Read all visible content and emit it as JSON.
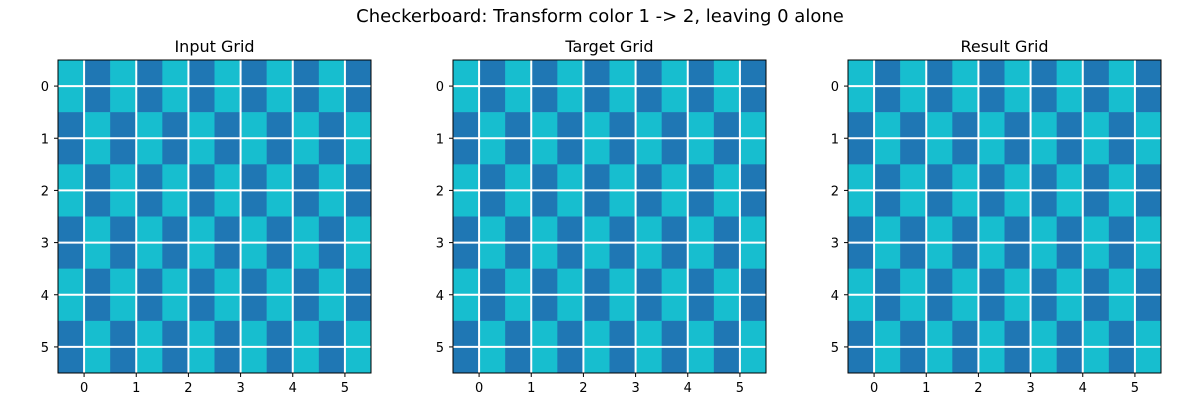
{
  "figure": {
    "suptitle": "Checkerboard: Transform color 1 -> 2, leaving 0 alone"
  },
  "colors": {
    "light": "#17becf",
    "dark": "#1f77b4",
    "grid": "#ffffff",
    "axis": "#000000"
  },
  "chart_data": [
    {
      "type": "heatmap",
      "title": "Input Grid",
      "x_ticks": [
        0,
        1,
        2,
        3,
        4,
        5
      ],
      "y_ticks": [
        0,
        1,
        2,
        3,
        4,
        5
      ],
      "grid": true,
      "values": [
        [
          0,
          1,
          0,
          1,
          0,
          1,
          0,
          1,
          0,
          1,
          0,
          1
        ],
        [
          0,
          1,
          0,
          1,
          0,
          1,
          0,
          1,
          0,
          1,
          0,
          1
        ],
        [
          1,
          0,
          1,
          0,
          1,
          0,
          1,
          0,
          1,
          0,
          1,
          0
        ],
        [
          1,
          0,
          1,
          0,
          1,
          0,
          1,
          0,
          1,
          0,
          1,
          0
        ],
        [
          0,
          1,
          0,
          1,
          0,
          1,
          0,
          1,
          0,
          1,
          0,
          1
        ],
        [
          0,
          1,
          0,
          1,
          0,
          1,
          0,
          1,
          0,
          1,
          0,
          1
        ],
        [
          1,
          0,
          1,
          0,
          1,
          0,
          1,
          0,
          1,
          0,
          1,
          0
        ],
        [
          1,
          0,
          1,
          0,
          1,
          0,
          1,
          0,
          1,
          0,
          1,
          0
        ],
        [
          0,
          1,
          0,
          1,
          0,
          1,
          0,
          1,
          0,
          1,
          0,
          1
        ],
        [
          0,
          1,
          0,
          1,
          0,
          1,
          0,
          1,
          0,
          1,
          0,
          1
        ],
        [
          1,
          0,
          1,
          0,
          1,
          0,
          1,
          0,
          1,
          0,
          1,
          0
        ],
        [
          1,
          0,
          1,
          0,
          1,
          0,
          1,
          0,
          1,
          0,
          1,
          0
        ]
      ]
    },
    {
      "type": "heatmap",
      "title": "Target Grid",
      "x_ticks": [
        0,
        1,
        2,
        3,
        4,
        5
      ],
      "y_ticks": [
        0,
        1,
        2,
        3,
        4,
        5
      ],
      "grid": true,
      "values": [
        [
          0,
          1,
          0,
          1,
          0,
          1,
          0,
          1,
          0,
          1,
          0,
          1
        ],
        [
          0,
          1,
          0,
          1,
          0,
          1,
          0,
          1,
          0,
          1,
          0,
          1
        ],
        [
          1,
          0,
          1,
          0,
          1,
          0,
          1,
          0,
          1,
          0,
          1,
          0
        ],
        [
          1,
          0,
          1,
          0,
          1,
          0,
          1,
          0,
          1,
          0,
          1,
          0
        ],
        [
          0,
          1,
          0,
          1,
          0,
          1,
          0,
          1,
          0,
          1,
          0,
          1
        ],
        [
          0,
          1,
          0,
          1,
          0,
          1,
          0,
          1,
          0,
          1,
          0,
          1
        ],
        [
          1,
          0,
          1,
          0,
          1,
          0,
          1,
          0,
          1,
          0,
          1,
          0
        ],
        [
          1,
          0,
          1,
          0,
          1,
          0,
          1,
          0,
          1,
          0,
          1,
          0
        ],
        [
          0,
          1,
          0,
          1,
          0,
          1,
          0,
          1,
          0,
          1,
          0,
          1
        ],
        [
          0,
          1,
          0,
          1,
          0,
          1,
          0,
          1,
          0,
          1,
          0,
          1
        ],
        [
          1,
          0,
          1,
          0,
          1,
          0,
          1,
          0,
          1,
          0,
          1,
          0
        ],
        [
          1,
          0,
          1,
          0,
          1,
          0,
          1,
          0,
          1,
          0,
          1,
          0
        ]
      ]
    },
    {
      "type": "heatmap",
      "title": "Result Grid",
      "x_ticks": [
        0,
        1,
        2,
        3,
        4,
        5
      ],
      "y_ticks": [
        0,
        1,
        2,
        3,
        4,
        5
      ],
      "grid": true,
      "values": [
        [
          0,
          1,
          0,
          1,
          0,
          1,
          0,
          1,
          0,
          1,
          0,
          1
        ],
        [
          0,
          1,
          0,
          1,
          0,
          1,
          0,
          1,
          0,
          1,
          0,
          1
        ],
        [
          1,
          0,
          1,
          0,
          1,
          0,
          1,
          0,
          1,
          0,
          1,
          0
        ],
        [
          1,
          0,
          1,
          0,
          1,
          0,
          1,
          0,
          1,
          0,
          1,
          0
        ],
        [
          0,
          1,
          0,
          1,
          0,
          1,
          0,
          1,
          0,
          1,
          0,
          1
        ],
        [
          0,
          1,
          0,
          1,
          0,
          1,
          0,
          1,
          0,
          1,
          0,
          1
        ],
        [
          1,
          0,
          1,
          0,
          1,
          0,
          1,
          0,
          1,
          0,
          1,
          0
        ],
        [
          1,
          0,
          1,
          0,
          1,
          0,
          1,
          0,
          1,
          0,
          1,
          0
        ],
        [
          0,
          1,
          0,
          1,
          0,
          1,
          0,
          1,
          0,
          1,
          0,
          1
        ],
        [
          0,
          1,
          0,
          1,
          0,
          1,
          0,
          1,
          0,
          1,
          0,
          1
        ],
        [
          1,
          0,
          1,
          0,
          1,
          0,
          1,
          0,
          1,
          0,
          1,
          0
        ],
        [
          1,
          0,
          1,
          0,
          1,
          0,
          1,
          0,
          1,
          0,
          1,
          0
        ]
      ]
    }
  ]
}
